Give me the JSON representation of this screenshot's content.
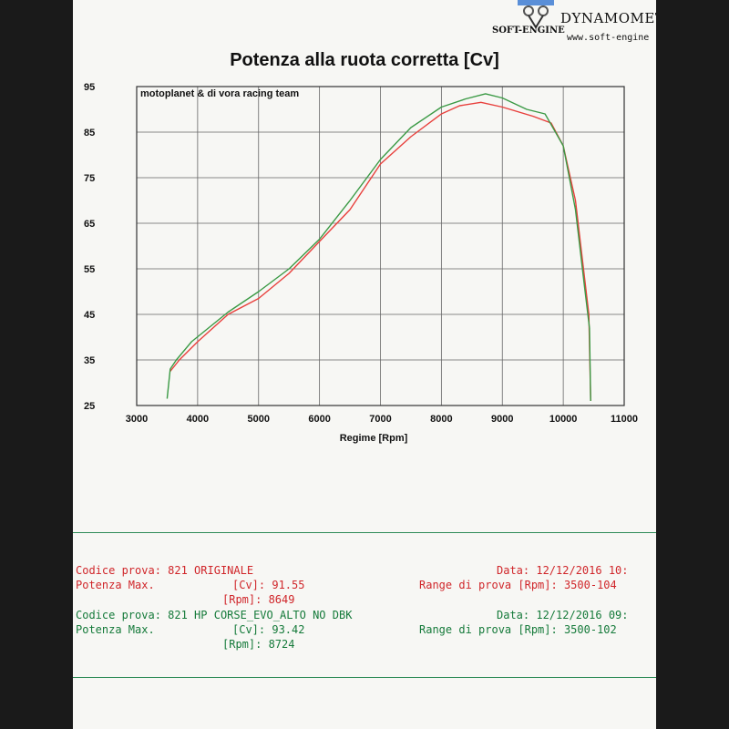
{
  "logo": {
    "brand": "DYNAMOMET",
    "website": "www.soft-engine",
    "mark": "SOFT-ENGINE"
  },
  "chart_data": {
    "type": "line",
    "title": "Potenza alla ruota corretta [Cv]",
    "annotation": "motoplanet & di vora racing team",
    "xlabel": "Regime [Rpm]",
    "ylabel": "",
    "xlim": [
      3000,
      11000
    ],
    "ylim": [
      25,
      95
    ],
    "xticks": [
      3000,
      4000,
      5000,
      6000,
      7000,
      8000,
      9000,
      10000,
      11000
    ],
    "yticks": [
      25,
      35,
      45,
      55,
      65,
      75,
      85,
      95
    ],
    "grid": true,
    "series": [
      {
        "color": "#e8403c",
        "points": [
          [
            3550,
            32.5
          ],
          [
            3700,
            35
          ],
          [
            4000,
            39
          ],
          [
            4500,
            45
          ],
          [
            5000,
            48.5
          ],
          [
            5500,
            54
          ],
          [
            6000,
            61
          ],
          [
            6500,
            68
          ],
          [
            7000,
            78
          ],
          [
            7500,
            84
          ],
          [
            8000,
            89
          ],
          [
            8300,
            90.8
          ],
          [
            8649,
            91.55
          ],
          [
            9000,
            90.5
          ],
          [
            9500,
            88.5
          ],
          [
            9800,
            87
          ],
          [
            10000,
            82
          ],
          [
            10200,
            70
          ],
          [
            10350,
            53
          ],
          [
            10420,
            45
          ],
          [
            10450,
            26
          ]
        ]
      },
      {
        "color": "#3b9a45",
        "points": [
          [
            3500,
            26.5
          ],
          [
            3550,
            33
          ],
          [
            3650,
            35
          ],
          [
            3900,
            39
          ],
          [
            4500,
            45.5
          ],
          [
            5000,
            50
          ],
          [
            5500,
            55
          ],
          [
            6000,
            61.5
          ],
          [
            6500,
            70
          ],
          [
            7000,
            79
          ],
          [
            7500,
            86
          ],
          [
            8000,
            90.5
          ],
          [
            8400,
            92.3
          ],
          [
            8724,
            93.42
          ],
          [
            9000,
            92.5
          ],
          [
            9400,
            90
          ],
          [
            9700,
            89
          ],
          [
            10000,
            82
          ],
          [
            10200,
            68
          ],
          [
            10350,
            51
          ],
          [
            10430,
            42
          ],
          [
            10450,
            26
          ]
        ]
      }
    ]
  },
  "results": {
    "test1": {
      "code": "Codice prova: 821 ORIGINALE",
      "date": "Data: 12/12/2016 10:",
      "power_label": "Potenza Max.",
      "cv": "[Cv]: 91.55",
      "range": "Range di prova [Rpm]: 3500-104",
      "rpm": "[Rpm]: 8649"
    },
    "test2": {
      "code": "Codice prova: 821 HP CORSE_EVO_ALTO NO DBK",
      "date": "Data: 12/12/2016 09:",
      "power_label": "Potenza Max.",
      "cv": "[Cv]: 93.42",
      "range": "Range di prova [Rpm]: 3500-102",
      "rpm": "[Rpm]: 8724"
    }
  }
}
